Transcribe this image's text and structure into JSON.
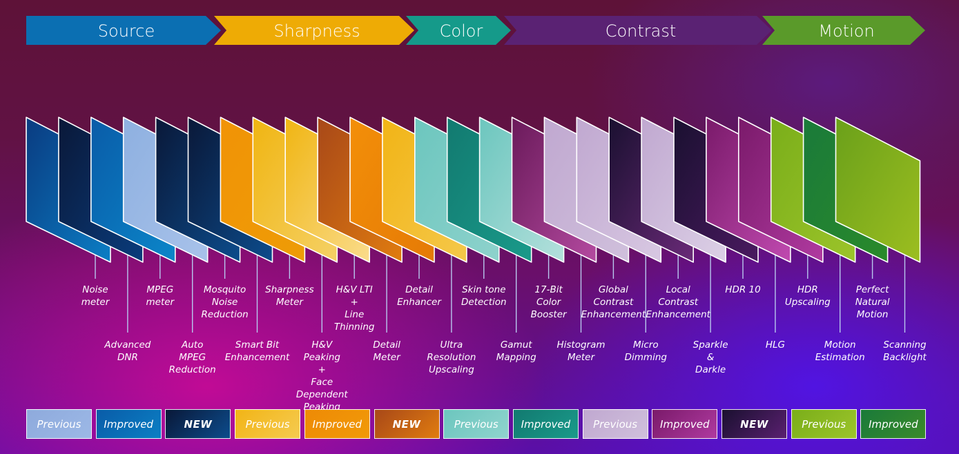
{
  "pipeline": {
    "stages": [
      {
        "label": "Source",
        "color": "#0b6fb2"
      },
      {
        "label": "Sharpness",
        "color": "#eeab05"
      },
      {
        "label": "Color",
        "color": "#159a8a"
      },
      {
        "label": "Contrast",
        "color": "#5a2273"
      },
      {
        "label": "Motion",
        "color": "#5a9a2a"
      }
    ]
  },
  "cards": [
    {
      "label": "Noise\nmeter",
      "row": "upper",
      "stage": "Source",
      "status": "Previous",
      "c1": "#0a3b80",
      "c2": "#0b7ec5"
    },
    {
      "label": "Advanced\nDNR",
      "row": "lower",
      "stage": "Source",
      "status": "NEW",
      "c1": "#0a1838",
      "c2": "#0a3c7c"
    },
    {
      "label": "MPEG\nmeter",
      "row": "upper",
      "stage": "Source",
      "status": "Improved",
      "c1": "#0a5ca8",
      "c2": "#0b86c9"
    },
    {
      "label": "Auto\nMPEG\nReduction",
      "row": "lower",
      "stage": "Source",
      "status": "Previous",
      "c1": "#8eb0e0",
      "c2": "#a8c2ea"
    },
    {
      "label": "Mosquito\nNoise\nReduction",
      "row": "upper",
      "stage": "Source",
      "status": "NEW",
      "c1": "#0a1838",
      "c2": "#0c4c8c"
    },
    {
      "label": "Smart Bit\nEnhancement",
      "row": "lower",
      "stage": "Source",
      "status": "NEW",
      "c1": "#0a1838",
      "c2": "#0c4c8c"
    },
    {
      "label": "Sharpness\nMeter",
      "row": "upper",
      "stage": "Sharpness",
      "status": "Improved",
      "c1": "#f19306",
      "c2": "#ee9c06"
    },
    {
      "label": "H&V\nPeaking\n+\nFace Dependent\nPeaking",
      "row": "lower",
      "stage": "Sharpness",
      "status": "Previous",
      "c1": "#f0b512",
      "c2": "#f5d166"
    },
    {
      "label": "H&V LTI\n+\nLine\nThinning",
      "row": "upper",
      "stage": "Sharpness",
      "status": "Previous",
      "c1": "#f0b512",
      "c2": "#fadc8c"
    },
    {
      "label": "Detail\nMeter",
      "row": "lower",
      "stage": "Sharpness",
      "status": "NEW",
      "c1": "#a84818",
      "c2": "#e07c10"
    },
    {
      "label": "Detail\nEnhancer",
      "row": "upper",
      "stage": "Sharpness",
      "status": "Improved",
      "c1": "#f38f08",
      "c2": "#e57a06"
    },
    {
      "label": "Ultra\nResolution\nUpscaling",
      "row": "lower",
      "stage": "Sharpness",
      "status": "Previous",
      "c1": "#f2b416",
      "c2": "#f4c84a"
    },
    {
      "label": "Skin tone\nDetection",
      "row": "upper",
      "stage": "Color",
      "status": "Previous",
      "c1": "#6cc6be",
      "c2": "#8ed2cc"
    },
    {
      "label": "Gamut\nMapping",
      "row": "lower",
      "stage": "Color",
      "status": "Improved",
      "c1": "#127a70",
      "c2": "#1a9a8a"
    },
    {
      "label": "17-Bit\nColor\nBooster",
      "row": "upper",
      "stage": "Color",
      "status": "Previous",
      "c1": "#6cc6be",
      "c2": "#b4e0dc"
    },
    {
      "label": "Histogram\nMeter",
      "row": "lower",
      "stage": "Contrast",
      "status": "Improved",
      "c1": "#6a1a5a",
      "c2": "#b44aa0"
    },
    {
      "label": "Global\nContrast\nEnhancement",
      "row": "upper",
      "stage": "Contrast",
      "status": "Previous",
      "c1": "#c0a8d0",
      "c2": "#d0c0dc"
    },
    {
      "label": "Micro\nDimming",
      "row": "lower",
      "stage": "Contrast",
      "status": "Previous",
      "c1": "#c0a8d0",
      "c2": "#d8c8e2"
    },
    {
      "label": "Local\nContrast\nEnhancement",
      "row": "upper",
      "stage": "Contrast",
      "status": "NEW",
      "c1": "#1a1030",
      "c2": "#6a2a78"
    },
    {
      "label": "Sparkle\n&\nDarkle",
      "row": "lower",
      "stage": "Contrast",
      "status": "Previous",
      "c1": "#c0a8d0",
      "c2": "#dcd0e6"
    },
    {
      "label": "HDR 10",
      "row": "upper",
      "stage": "Contrast",
      "status": "NEW",
      "c1": "#1a1030",
      "c2": "#4a1a60"
    },
    {
      "label": "HLG",
      "row": "lower",
      "stage": "Contrast",
      "status": "Improved",
      "c1": "#7a1a6a",
      "c2": "#c04ab0"
    },
    {
      "label": "HDR\nUpscaling",
      "row": "upper",
      "stage": "Contrast",
      "status": "Improved",
      "c1": "#7a1a6a",
      "c2": "#b03aa0"
    },
    {
      "label": "Motion\nEstimation",
      "row": "lower",
      "stage": "Motion",
      "status": "Previous",
      "c1": "#7aae1a",
      "c2": "#9cc42a"
    },
    {
      "label": "Perfect\nNatural\nMotion",
      "row": "upper",
      "stage": "Motion",
      "status": "Improved",
      "c1": "#1a7a3a",
      "c2": "#2a8a2a"
    },
    {
      "label": "Scanning\nBacklight",
      "row": "lower",
      "stage": "Motion",
      "status": "Previous",
      "c1": "#6aa01a",
      "c2": "#9cbe20"
    }
  ],
  "legend": [
    {
      "label": "Previous",
      "color": "#8eaadc",
      "color2": "#9cb8e6",
      "variant": "normal"
    },
    {
      "label": "Improved",
      "color": "#0a5ca8",
      "color2": "#0b7fc4",
      "variant": "normal"
    },
    {
      "label": "NEW",
      "color": "#0a1838",
      "color2": "#0c4c8c",
      "variant": "new"
    },
    {
      "label": "Previous",
      "color": "#f2b416",
      "color2": "#f5cb50",
      "variant": "normal"
    },
    {
      "label": "Improved",
      "color": "#ee8a06",
      "color2": "#f19a08",
      "variant": "normal"
    },
    {
      "label": "NEW",
      "color": "#a84818",
      "color2": "#e07c10",
      "variant": "new"
    },
    {
      "label": "Previous",
      "color": "#6cc6be",
      "color2": "#90d4ce",
      "variant": "normal"
    },
    {
      "label": "Improved",
      "color": "#127a70",
      "color2": "#1a9a8a",
      "variant": "normal"
    },
    {
      "label": "Previous",
      "color": "#c0a8d0",
      "color2": "#d0c0dc",
      "variant": "normal"
    },
    {
      "label": "Improved",
      "color": "#7a1a6a",
      "color2": "#b03aa0",
      "variant": "normal"
    },
    {
      "label": "NEW",
      "color": "#1a1030",
      "color2": "#5a2070",
      "variant": "new"
    },
    {
      "label": "Previous",
      "color": "#7aae1a",
      "color2": "#9cc42a",
      "variant": "normal"
    },
    {
      "label": "Improved",
      "color": "#1a7a3a",
      "color2": "#3a8a2a",
      "variant": "normal"
    }
  ]
}
